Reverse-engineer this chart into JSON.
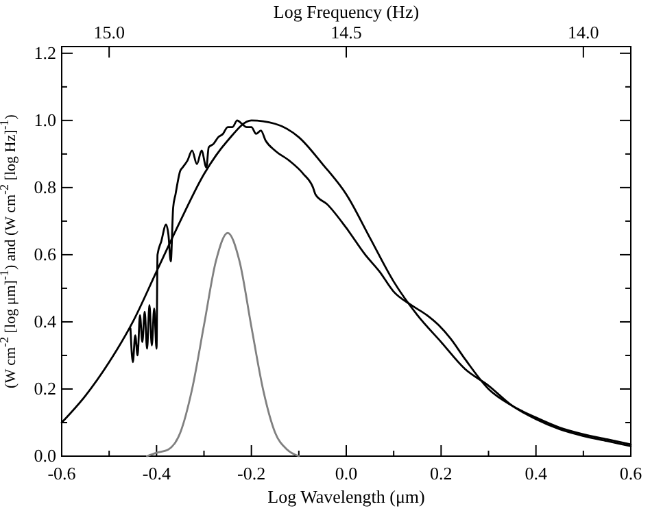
{
  "chart_data": {
    "type": "line",
    "xlabel": "Log Wavelength (μm)",
    "ylabel": "(W cm$^{-2}$ [log μm]$^{-1}$) and (W cm$^{-2}$ [log Hz]$^{-1}$)",
    "x2label": "Log Frequency (Hz)",
    "xlim": [
      -0.6,
      0.6
    ],
    "xticks": [
      -0.6,
      -0.4,
      -0.2,
      {
        "value": 0,
        "label": "0.0"
      },
      0.2,
      0.4,
      0.6,
      {
        "value": -0.5,
        "label": null
      },
      {
        "value": -0.3,
        "label": null
      },
      {
        "value": -0.1,
        "label": null
      },
      {
        "value": 0.1,
        "label": null
      },
      {
        "value": 0.3,
        "label": null
      },
      {
        "value": 0.5,
        "label": null
      }
    ],
    "x2lim": [
      15.1,
      13.9
    ],
    "x2ticks": [
      {
        "value": 15,
        "label": "15.0"
      },
      14.5,
      {
        "value": 14,
        "label": "14.0"
      }
    ],
    "ylim": [
      0,
      1.22
    ],
    "yticks": [
      {
        "value": 0,
        "label": "0.0"
      },
      0.2,
      0.4,
      0.6,
      0.8,
      {
        "value": 1,
        "label": "1.0"
      },
      1.2,
      {
        "value": 0.1,
        "label": null
      },
      {
        "value": 0.3,
        "label": null
      },
      {
        "value": 0.5,
        "label": null
      },
      {
        "value": 0.7,
        "label": null
      },
      {
        "value": 0.9,
        "label": null
      },
      {
        "value": 1.1,
        "label": null
      }
    ],
    "grid": false,
    "line_style": "solid",
    "marker": "none",
    "series": [
      {
        "color": "#000000",
        "x": [
          -0.6,
          -0.55,
          -0.5,
          -0.45,
          -0.4,
          -0.35,
          -0.3,
          -0.25,
          -0.2,
          -0.15,
          -0.1,
          -0.05,
          0.0,
          0.05,
          0.1,
          0.15,
          0.2,
          0.25,
          0.3,
          0.35,
          0.4,
          0.45,
          0.5,
          0.55,
          0.6
        ],
        "values": [
          0.1,
          0.18,
          0.28,
          0.4,
          0.55,
          0.7,
          0.84,
          0.94,
          1.0,
          0.99,
          0.95,
          0.87,
          0.78,
          0.65,
          0.52,
          0.42,
          0.34,
          0.26,
          0.21,
          0.15,
          0.11,
          0.08,
          0.06,
          0.045,
          0.03
        ]
      },
      {
        "color": "#000000",
        "x": [
          -0.455,
          -0.45,
          -0.445,
          -0.44,
          -0.435,
          -0.43,
          -0.425,
          -0.42,
          -0.415,
          -0.41,
          -0.405,
          -0.4,
          -0.398,
          -0.39,
          -0.38,
          -0.375,
          -0.37,
          -0.365,
          -0.36,
          -0.35,
          -0.345,
          -0.335,
          -0.325,
          -0.315,
          -0.305,
          -0.295,
          -0.29,
          -0.28,
          -0.27,
          -0.26,
          -0.25,
          -0.24,
          -0.23,
          -0.22,
          -0.21,
          -0.2,
          -0.19,
          -0.18,
          -0.17,
          -0.15,
          -0.12,
          -0.09,
          -0.07,
          -0.065,
          -0.04,
          0.0,
          0.04,
          0.07,
          0.1,
          0.137,
          0.17,
          0.195,
          0.22,
          0.25,
          0.3,
          0.35,
          0.4,
          0.45,
          0.5,
          0.55,
          0.6
        ],
        "values": [
          0.38,
          0.28,
          0.36,
          0.3,
          0.42,
          0.34,
          0.43,
          0.32,
          0.45,
          0.33,
          0.44,
          0.32,
          0.6,
          0.64,
          0.69,
          0.66,
          0.58,
          0.74,
          0.78,
          0.85,
          0.86,
          0.88,
          0.91,
          0.87,
          0.91,
          0.86,
          0.92,
          0.93,
          0.95,
          0.96,
          0.98,
          0.98,
          1.0,
          0.99,
          0.98,
          0.98,
          0.96,
          0.97,
          0.94,
          0.91,
          0.88,
          0.84,
          0.8,
          0.78,
          0.75,
          0.68,
          0.6,
          0.55,
          0.49,
          0.45,
          0.42,
          0.39,
          0.35,
          0.29,
          0.2,
          0.15,
          0.115,
          0.085,
          0.065,
          0.05,
          0.035
        ]
      },
      {
        "color": "#808080",
        "x": [
          -0.42,
          -0.4,
          -0.375,
          -0.35,
          -0.325,
          -0.3,
          -0.275,
          -0.25,
          -0.225,
          -0.2,
          -0.175,
          -0.15,
          -0.125,
          -0.1
        ],
        "values": [
          0.0,
          0.01,
          0.02,
          0.07,
          0.2,
          0.39,
          0.58,
          0.665,
          0.58,
          0.385,
          0.196,
          0.07,
          0.02,
          0.0
        ]
      }
    ]
  }
}
